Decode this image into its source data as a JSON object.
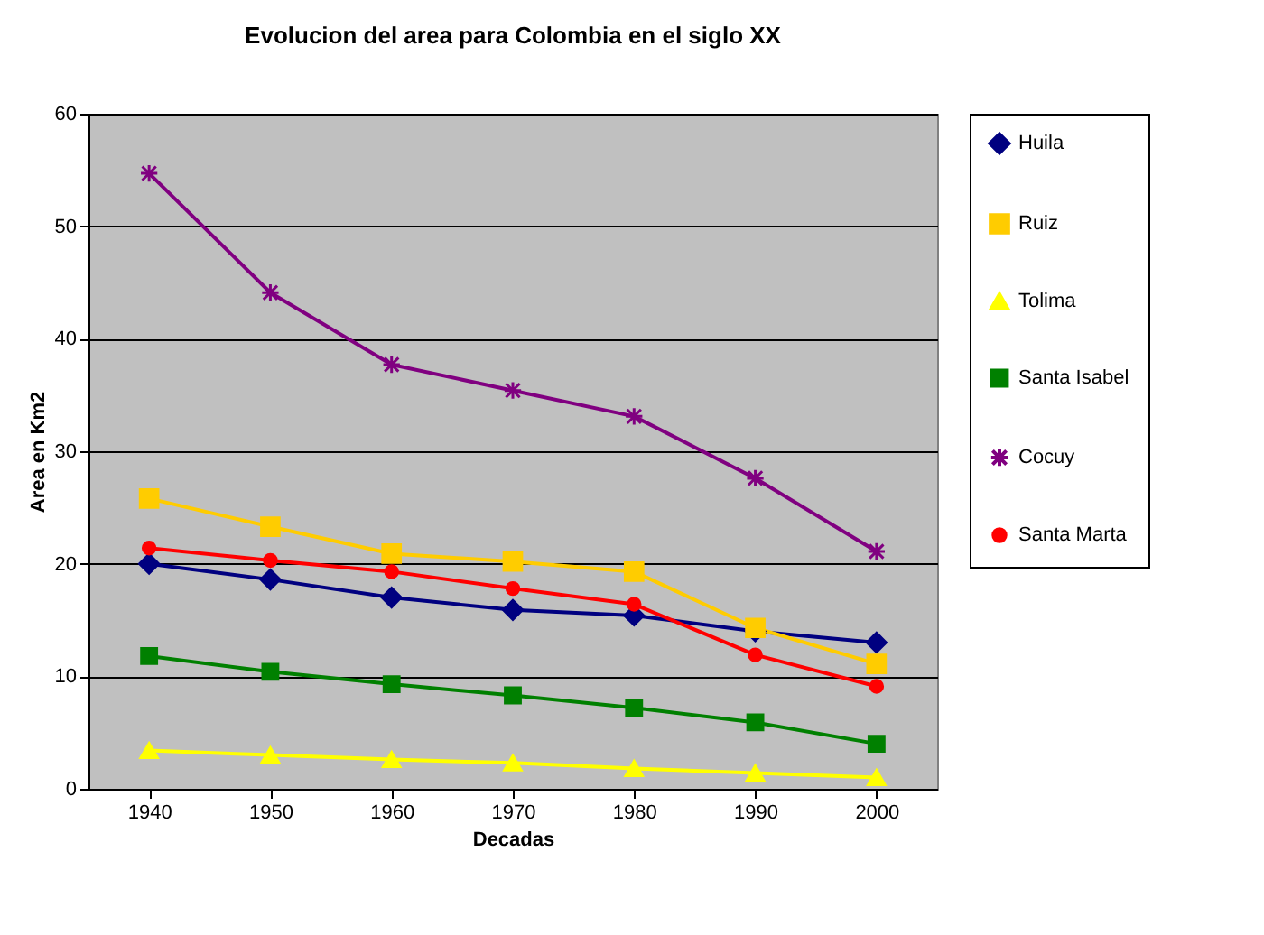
{
  "chart_data": {
    "type": "line",
    "title": "Evolucion del area para Colombia en el siglo XX",
    "xlabel": "Decadas",
    "ylabel": "Area en Km2",
    "categories": [
      "1940",
      "1950",
      "1960",
      "1970",
      "1980",
      "1990",
      "2000"
    ],
    "series": [
      {
        "name": "Huila",
        "color": "#000080",
        "marker": "diamond",
        "values": [
          20,
          18.6,
          17,
          15.9,
          15.4,
          14,
          13
        ]
      },
      {
        "name": "Ruiz",
        "color": "#ffcc00",
        "marker": "square",
        "values": [
          25.8,
          23.3,
          20.9,
          20.2,
          19.3,
          14.3,
          11.1
        ]
      },
      {
        "name": "Tolima",
        "color": "#ffff00",
        "marker": "triangle",
        "values": [
          3.4,
          3.0,
          2.6,
          2.3,
          1.8,
          1.4,
          1.0
        ]
      },
      {
        "name": "Santa Isabel",
        "color": "#008000",
        "marker": "square",
        "values": [
          11.8,
          10.4,
          9.3,
          8.3,
          7.2,
          5.9,
          4.0
        ]
      },
      {
        "name": "Cocuy",
        "color": "#800080",
        "marker": "cross",
        "values": [
          54.7,
          44.1,
          37.7,
          35.4,
          33.1,
          27.6,
          21.1
        ]
      },
      {
        "name": "Santa Marta",
        "color": "#ff0000",
        "marker": "circle",
        "values": [
          21.4,
          20.3,
          19.3,
          17.8,
          16.4,
          11.9,
          9.1
        ]
      }
    ],
    "ylim": [
      0,
      60
    ],
    "yticks": [
      0,
      10,
      20,
      30,
      40,
      50,
      60
    ],
    "grid": "y",
    "legend": "right",
    "line_style": "solid"
  }
}
